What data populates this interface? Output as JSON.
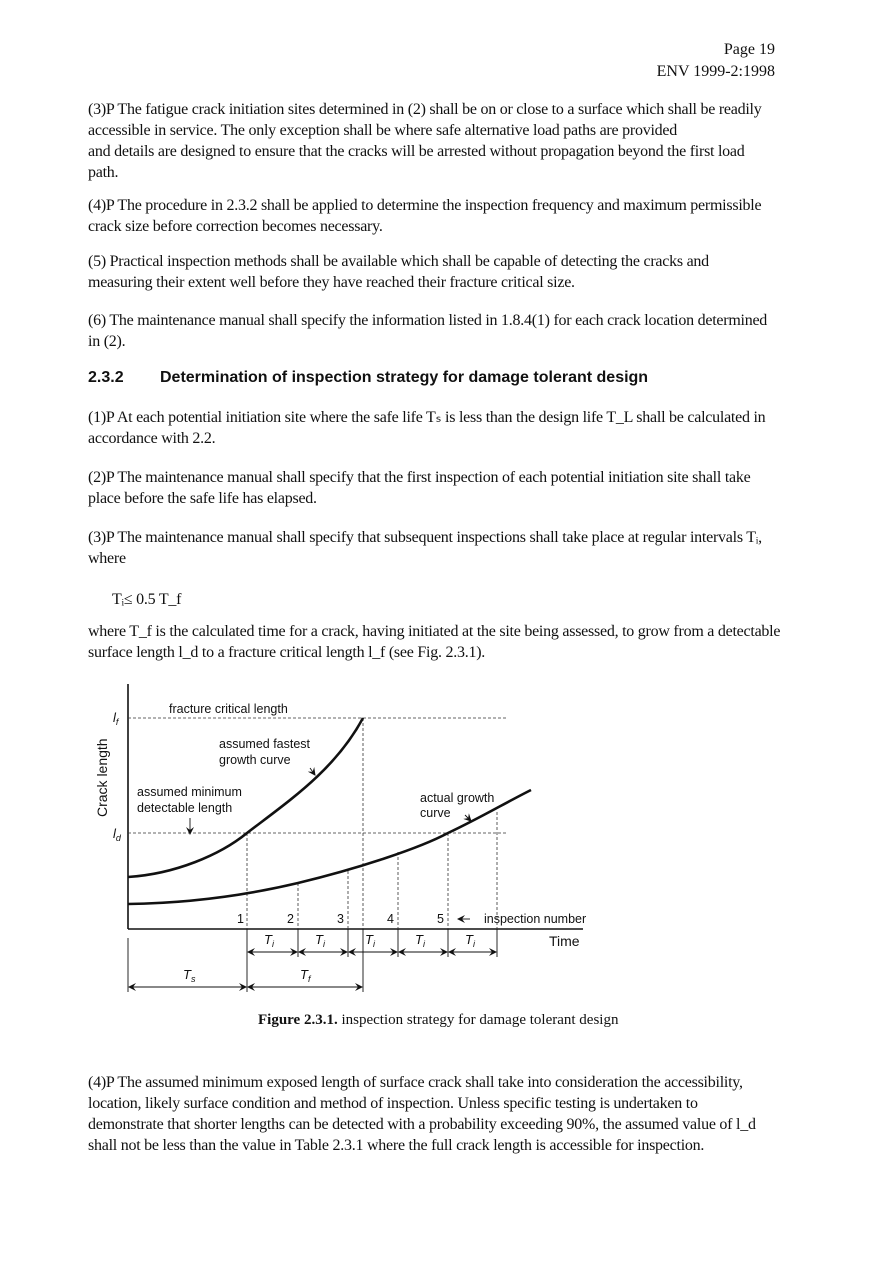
{
  "header": {
    "page": "Page 19",
    "standard": "ENV 1999-2:1998"
  },
  "paragraphs_top": [
    {
      "lines": [
        "(3)P The fatigue crack initiation sites determined in (2) shall be on or close to a surface which shall be readily",
        "accessible in service. The only exception shall be where safe alternative load paths are provided",
        "and details are designed to ensure that the cracks will be arrested without propagation beyond the first load",
        "path."
      ]
    },
    {
      "lines": [
        "(4)P The procedure in 2.3.2 shall be applied to determine the inspection frequency and maximum permissible",
        "crack size before correction becomes necessary."
      ]
    },
    {
      "lines": [
        "(5) Practical inspection methods shall be available which shall be capable of detecting the cracks and",
        "measuring their extent well before they have reached their fracture critical size."
      ]
    },
    {
      "lines": [
        "(6) The maintenance manual shall specify the information listed in 1.8.4(1) for each crack location determined",
        "in (2)."
      ]
    }
  ],
  "section": {
    "number": "2.3.2",
    "title": "Determination of inspection strategy for damage tolerant design"
  },
  "paragraphs_section": [
    {
      "lines": [
        "(1)P At each potential initiation site where the safe life Tₛ is less than the design life T_L shall be calculated in",
        "accordance with 2.2."
      ]
    },
    {
      "lines": [
        "(2)P The maintenance manual shall specify that the first inspection of each potential initiation site shall take",
        "place before the safe life has elapsed."
      ]
    },
    {
      "lines": [
        "(3)P The maintenance manual shall specify that subsequent inspections shall take place at regular intervals Tᵢ,",
        "where"
      ]
    }
  ],
  "formula": "Tᵢ≤ 0.5 T_f",
  "paragraph_where": {
    "lines": [
      "where T_f is the calculated time for a crack, having initiated at the site being assessed, to grow from a detectable",
      "surface length l_d to a fracture critical length l_f (see Fig. 2.3.1)."
    ]
  },
  "figure": {
    "y_axis_label": "Crack length",
    "x_axis_label": "Time",
    "lf_label": "l",
    "lf_sub": "f",
    "ld_label": "l",
    "ld_sub": "d",
    "fracture_critical_length": "fracture critical length",
    "fastest_curve_label": [
      "assumed fastest",
      "growth curve"
    ],
    "min_detectable_label": [
      "assumed minimum",
      "detectable length"
    ],
    "actual_curve_label": [
      "actual growth",
      "curve"
    ],
    "inspection_numbers": [
      "1",
      "2",
      "3",
      "4",
      "5"
    ],
    "inspection_number_label": "inspection number",
    "interval_label": "T",
    "interval_sub": "i",
    "ts_label": "T",
    "ts_sub": "s",
    "tf_label": "T",
    "tf_sub": "f"
  },
  "caption": {
    "label": "Figure 2.3.1.",
    "text": " inspection strategy for damage tolerant design"
  },
  "paragraph_bottom": {
    "lines": [
      "(4)P The assumed minimum exposed length of surface crack shall take into consideration the accessibility,",
      "location, likely surface condition and method of inspection. Unless specific testing is undertaken to",
      "demonstrate that shorter lengths can be detected with a probability exceeding 90%, the assumed value of l_d",
      "shall not be less than the value in Table 2.3.1 where the full crack length is accessible for inspection."
    ]
  }
}
